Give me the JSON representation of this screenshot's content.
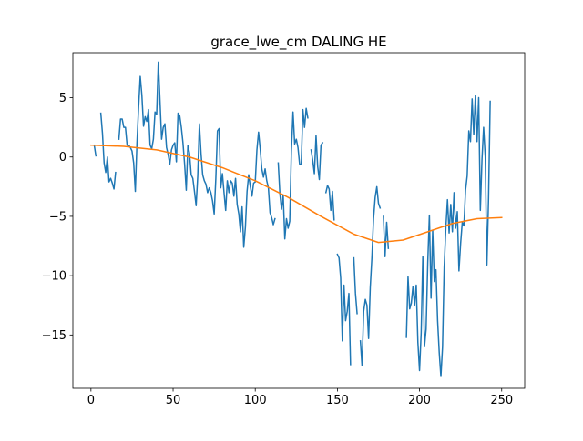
{
  "chart_data": {
    "type": "line",
    "title": "grace_lwe_cm DALING HE",
    "xlabel": "",
    "ylabel": "",
    "xlim": [
      -11,
      264
    ],
    "ylim": [
      -19.5,
      8.8
    ],
    "xticks": [
      0,
      50,
      100,
      150,
      200,
      250
    ],
    "yticks": [
      -15,
      -10,
      -5,
      0,
      5
    ],
    "ytick_labels": [
      "−15",
      "−10",
      "−5",
      "0",
      "5"
    ],
    "grid": false,
    "legend": "none",
    "series": [
      {
        "color": "#1f77b4",
        "values": [
          null,
          null,
          1.0,
          0.1,
          null,
          null,
          3.7,
          2.0,
          -0.5,
          -1.3,
          0.0,
          -2.1,
          -1.8,
          -2.2,
          -2.7,
          -1.3,
          null,
          1.5,
          3.2,
          3.2,
          2.5,
          2.5,
          1.0,
          1.0,
          0.8,
          0.5,
          -0.5,
          -2.9,
          1.2,
          4.2,
          6.8,
          5.2,
          2.6,
          3.4,
          3.0,
          4.0,
          1.0,
          0.7,
          1.5,
          3.8,
          3.6,
          8.0,
          4.8,
          1.5,
          2.5,
          2.8,
          0.8,
          0.2,
          -0.6,
          0.6,
          1.0,
          1.2,
          -0.4,
          3.7,
          3.5,
          2.5,
          1.2,
          -0.6,
          -2.8,
          1.0,
          0.3,
          -1.5,
          -1.8,
          -2.9,
          -4.1,
          -1.6,
          2.8,
          0.3,
          -1.5,
          -2.0,
          -2.3,
          -3.0,
          -2.6,
          -3.0,
          -3.7,
          -4.8,
          -1.8,
          2.2,
          2.4,
          -2.6,
          -1.4,
          -3.0,
          -4.5,
          -2.0,
          -3.0,
          -2.0,
          -2.2,
          -3.3,
          -1.8,
          -4.0,
          -4.8,
          -6.3,
          -4.2,
          -7.6,
          -5.9,
          -2.9,
          -1.5,
          -2.5,
          -3.3,
          -2.2,
          -2.1,
          0.6,
          2.1,
          0.7,
          -1.0,
          -1.7,
          -1.0,
          -2.0,
          -2.6,
          -4.7,
          -5.1,
          -5.7,
          -5.2,
          null,
          -0.5,
          -3.1,
          -4.4,
          -3.2,
          -6.9,
          -5.2,
          -6.0,
          -5.4,
          0.5,
          3.8,
          1.1,
          1.5,
          0.8,
          -0.6,
          -0.6,
          4.0,
          2.5,
          4.1,
          3.3,
          null,
          0.6,
          -0.3,
          -1.4,
          1.8,
          -0.8,
          -1.9,
          1.0,
          1.2,
          null,
          -3.0,
          -2.4,
          -2.7,
          -4.5,
          -2.9,
          -5.3,
          null,
          -8.2,
          -8.5,
          -10.2,
          -15.5,
          -10.8,
          -13.8,
          -13.0,
          -11.5,
          -17.5,
          null,
          -8.5,
          -11.5,
          -13.2,
          null,
          -15.5,
          -17.6,
          -13.0,
          -12.0,
          -12.5,
          -15.3,
          -11.0,
          -8.5,
          -5.2,
          -3.4,
          -2.5,
          -3.9,
          -4.3,
          null,
          -5.0,
          -8.4,
          -5.5,
          -7.7,
          null,
          null,
          null,
          null,
          null,
          null,
          null,
          null,
          null,
          null,
          -15.2,
          -10.1,
          -12.8,
          -12.3,
          -10.9,
          -12.5,
          -10.8,
          -15.6,
          -18.0,
          -14.8,
          -8.4,
          -16.0,
          -14.5,
          -8.9,
          -4.9,
          -11.9,
          -6.2,
          -10.5,
          -9.5,
          -13.8,
          -16.5,
          -18.5,
          -16.0,
          -9.3,
          -6.0,
          -3.6,
          -6.4,
          -4.0,
          -6.3,
          -3.0,
          -6.0,
          -4.6,
          -9.6,
          -7.3,
          -5.5,
          -5.8,
          -2.8,
          -1.6,
          2.2,
          1.3,
          4.9,
          1.9,
          5.2,
          1.3,
          5.0,
          -4.5,
          -0.2,
          2.5,
          0.0,
          -9.1,
          -3.5,
          4.7
        ]
      },
      {
        "color": "#ff7f0e",
        "values": [
          1.0,
          0.9,
          0.6,
          0.0,
          -0.9,
          -2.0,
          -3.4,
          -5.0,
          -6.5,
          -7.2,
          -7.0,
          -6.3,
          -5.6,
          -5.2,
          -5.1
        ],
        "x": [
          0,
          20,
          40,
          60,
          80,
          100,
          120,
          140,
          160,
          175,
          190,
          205,
          220,
          235,
          250
        ]
      }
    ]
  }
}
